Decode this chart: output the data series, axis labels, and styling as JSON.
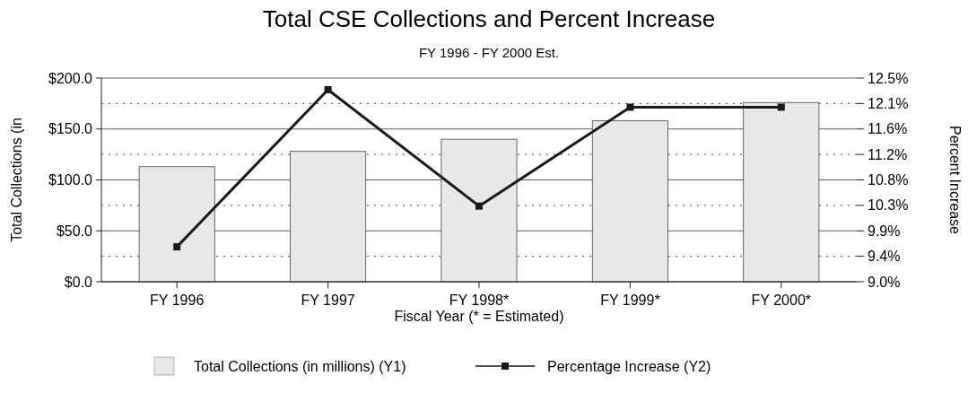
{
  "chart_data": {
    "type": "bar",
    "title": "Total CSE Collections and Percent Increase",
    "subtitle": "FY 1996 - FY 2000 Est.",
    "xlabel": "Fiscal Year (* = Estimated)",
    "ylabel": "Total Collections (in",
    "y2label": "Percent Increase",
    "categories": [
      "FY 1996",
      "FY 1997",
      "FY 1998*",
      "FY 1999*",
      "FY 2000*"
    ],
    "series": [
      {
        "name": "Total Collections (in millions) (Y1)",
        "color": "#e8e8e8",
        "values": [
          113,
          128,
          140,
          158,
          176
        ]
      },
      {
        "name": "Percentage Increase (Y2)",
        "type": "line",
        "axis": "y2",
        "color": "#1a1a1a",
        "marker": "square",
        "values": [
          9.6,
          12.3,
          10.3,
          12.0,
          12.0
        ]
      }
    ],
    "ylim": [
      0,
      200
    ],
    "yticks": [
      {
        "value": 0,
        "label": "$0.0"
      },
      {
        "value": 50,
        "label": "$50.0"
      },
      {
        "value": 100,
        "label": "$100.0"
      },
      {
        "value": 150,
        "label": "$150.0"
      },
      {
        "value": 200,
        "label": "$200.0"
      }
    ],
    "y2lim": [
      9,
      12.5
    ],
    "y2ticks": [
      {
        "value": 9,
        "label": "9.0%"
      },
      {
        "value": 9.4375,
        "label": "9.4%"
      },
      {
        "value": 9.875,
        "label": "9.9%"
      },
      {
        "value": 10.3125,
        "label": "10.3%"
      },
      {
        "value": 10.75,
        "label": "10.8%"
      },
      {
        "value": 11.1875,
        "label": "11.2%"
      },
      {
        "value": 11.625,
        "label": "11.6%"
      },
      {
        "value": 12.0625,
        "label": "12.1%"
      },
      {
        "value": 12.5,
        "label": "12.5%"
      }
    ],
    "grid": true,
    "legend": "bottom"
  }
}
